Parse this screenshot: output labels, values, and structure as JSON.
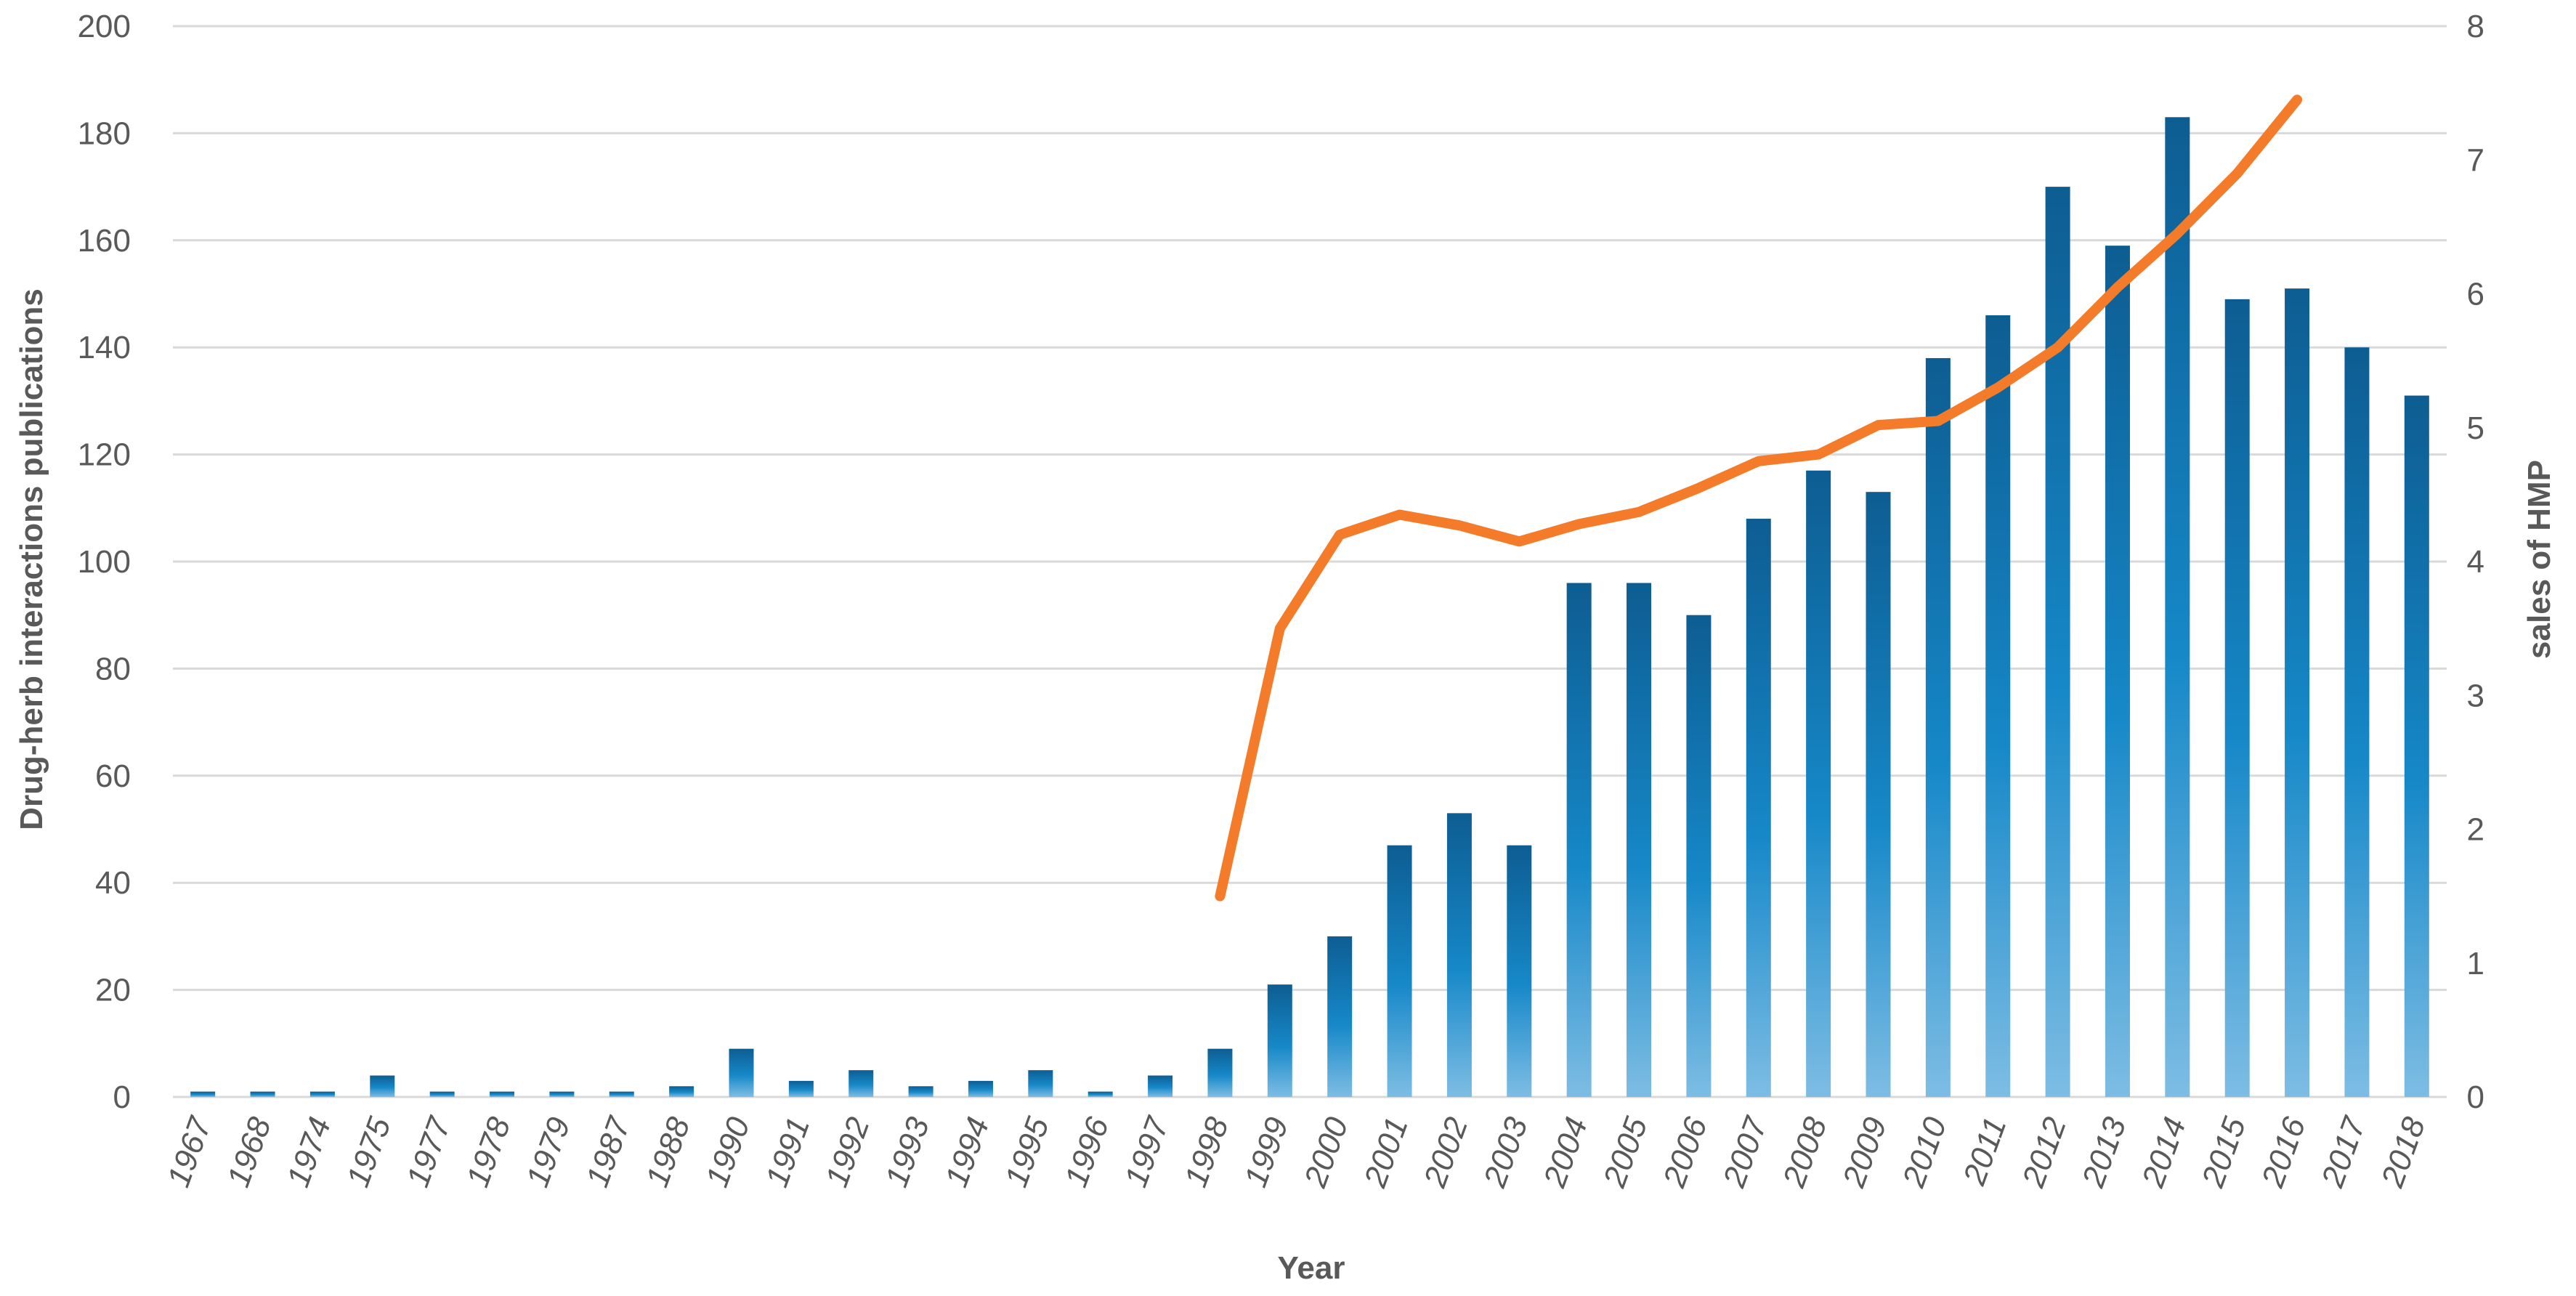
{
  "chart_data": {
    "type": "bar",
    "xlabel": "Year",
    "ylabel": "Drug-herb interactions publications",
    "y2label": "sales of HMP",
    "ylim": [
      0,
      200
    ],
    "y2lim": [
      0,
      8
    ],
    "yticks": [
      "0",
      "20",
      "40",
      "60",
      "80",
      "100",
      "120",
      "140",
      "160",
      "180",
      "200"
    ],
    "y2ticks": [
      "0",
      "1",
      "2",
      "3",
      "4",
      "5",
      "6",
      "7",
      "8"
    ],
    "grid": true,
    "legend": "none",
    "categories": [
      "1967",
      "1968",
      "1974",
      "1975",
      "1977",
      "1978",
      "1979",
      "1987",
      "1988",
      "1990",
      "1991",
      "1992",
      "1993",
      "1994",
      "1995",
      "1996",
      "1997",
      "1998",
      "1999",
      "2000",
      "2001",
      "2002",
      "2003",
      "2004",
      "2005",
      "2006",
      "2007",
      "2008",
      "2009",
      "2010",
      "2011",
      "2012",
      "2013",
      "2014",
      "2015",
      "2016",
      "2017",
      "2018"
    ],
    "series": [
      {
        "type": "bar",
        "axis": "left",
        "color": "#1f7fc0",
        "values": [
          1,
          1,
          1,
          4,
          1,
          1,
          1,
          1,
          2,
          9,
          3,
          5,
          2,
          3,
          5,
          1,
          4,
          9,
          21,
          30,
          47,
          53,
          47,
          96,
          96,
          90,
          108,
          117,
          113,
          138,
          146,
          170,
          159,
          183,
          149,
          151,
          140,
          131
        ]
      },
      {
        "type": "line",
        "axis": "right",
        "color": "#f47b2a",
        "x": [
          "1998",
          "1999",
          "2000",
          "2001",
          "2002",
          "2003",
          "2004",
          "2005",
          "2006",
          "2007",
          "2008",
          "2009",
          "2010",
          "2011",
          "2012",
          "2013",
          "2014",
          "2015",
          "2016"
        ],
        "values": [
          1.5,
          3.5,
          4.2,
          4.35,
          4.27,
          4.15,
          4.28,
          4.37,
          4.55,
          4.75,
          4.8,
          5.02,
          5.05,
          5.3,
          5.6,
          6.05,
          6.45,
          6.9,
          7.45
        ]
      }
    ]
  }
}
